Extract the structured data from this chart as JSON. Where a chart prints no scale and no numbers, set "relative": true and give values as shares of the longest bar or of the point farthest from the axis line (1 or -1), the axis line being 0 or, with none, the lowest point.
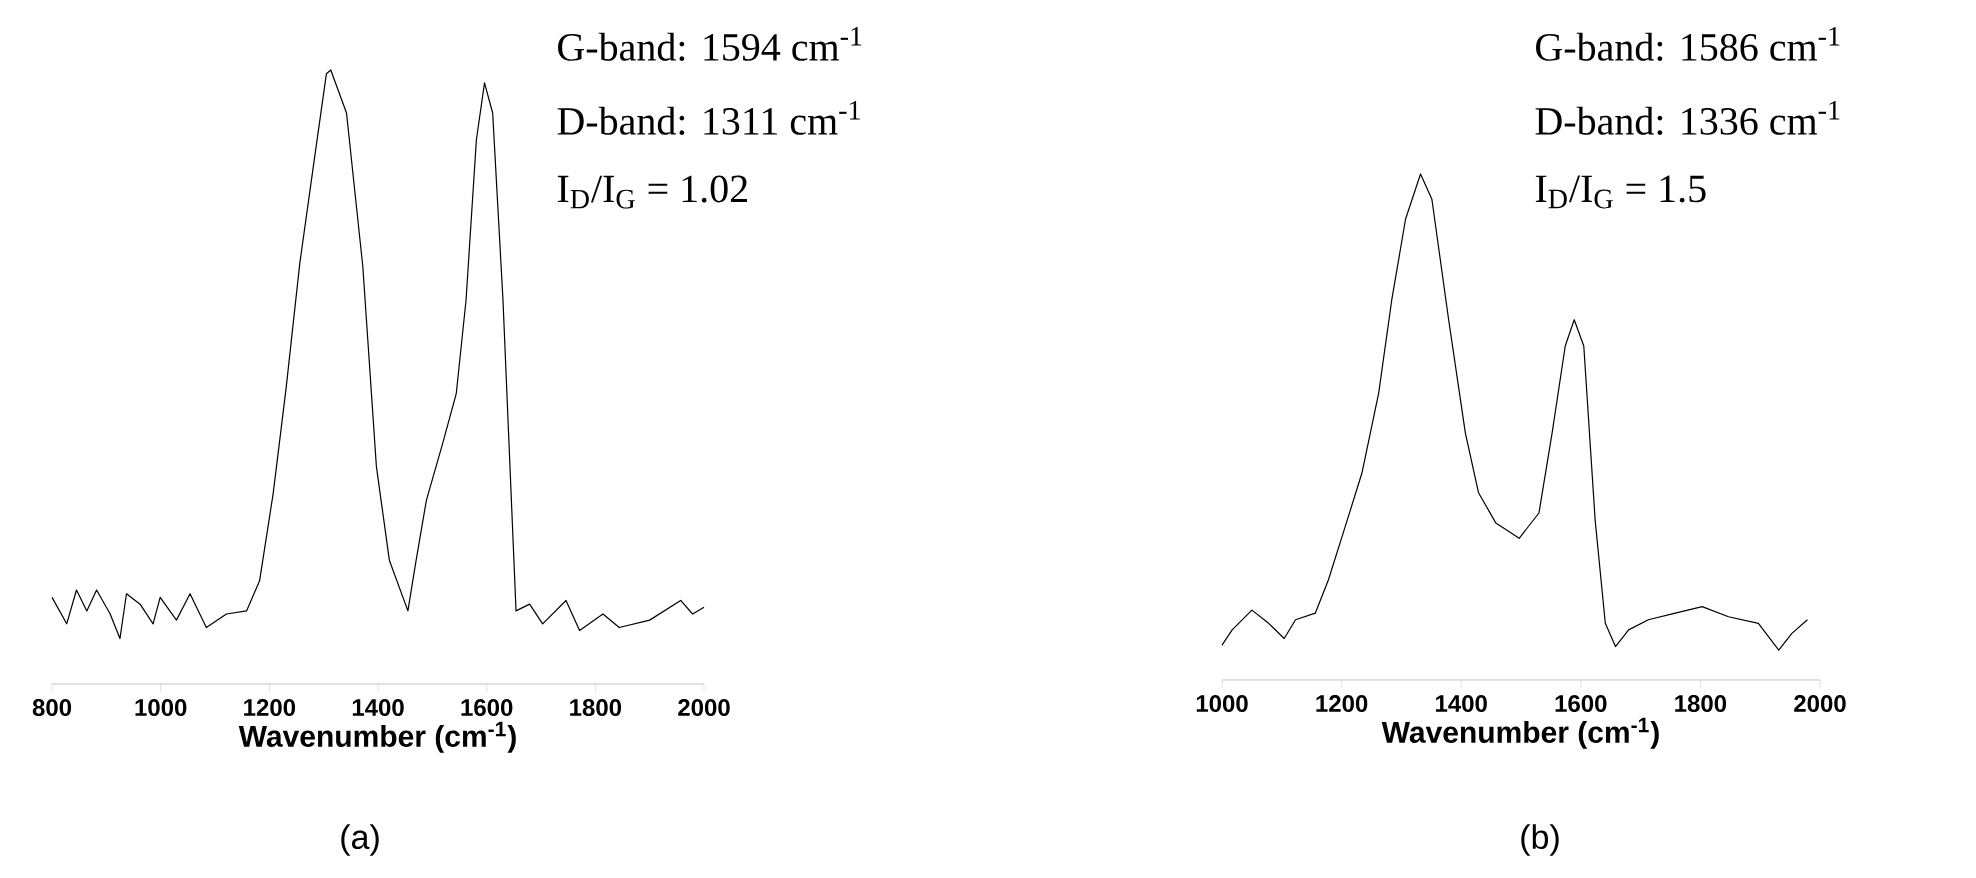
{
  "chart_data": [
    {
      "type": "line",
      "relative": true,
      "xlabel": "Wavenumber (cm$^{-1}$)",
      "xlim": [
        800,
        2000
      ],
      "xticks": [
        800,
        1000,
        1200,
        1400,
        1600,
        1800,
        2000
      ],
      "annotations": [
        "G-band: 1594 cm$^{-1}$",
        "D-band: 1311 cm$^{-1}$",
        "I$_{D}$/I$_{G}$ = 1.02",
        "(a)"
      ],
      "series": [
        {
          "color": "#000000",
          "x": [
            800,
            827,
            845,
            864,
            882,
            907,
            925,
            937,
            962,
            986,
            999,
            1029,
            1054,
            1084,
            1121,
            1158,
            1182,
            1207,
            1231,
            1256,
            1280,
            1305,
            1313,
            1342,
            1372,
            1397,
            1421,
            1455,
            1470,
            1489,
            1519,
            1544,
            1562,
            1581,
            1596,
            1611,
            1630,
            1654,
            1679,
            1703,
            1746,
            1771,
            1814,
            1844,
            1900,
            1957,
            1979,
            2000
          ],
          "values": [
            0.141,
            0.098,
            0.153,
            0.119,
            0.153,
            0.114,
            0.074,
            0.147,
            0.13,
            0.098,
            0.141,
            0.104,
            0.147,
            0.092,
            0.114,
            0.119,
            0.168,
            0.31,
            0.483,
            0.685,
            0.837,
            0.994,
            1.0,
            0.93,
            0.68,
            0.354,
            0.201,
            0.119,
            0.201,
            0.299,
            0.392,
            0.473,
            0.625,
            0.886,
            0.979,
            0.93,
            0.625,
            0.119,
            0.13,
            0.098,
            0.136,
            0.087,
            0.114,
            0.092,
            0.104,
            0.136,
            0.114,
            0.125
          ]
        }
      ]
    },
    {
      "type": "line",
      "relative": true,
      "xlabel": "Wavenumber (cm$^{-1}$)",
      "xlim": [
        1000,
        2000
      ],
      "xticks": [
        1000,
        1200,
        1400,
        1600,
        1800,
        2000
      ],
      "annotations": [
        "G-band: 1586 cm$^{-1}$",
        "D-band: 1336 cm$^{-1}$",
        "I$_{D}$/I$_{G}$ = 1.5",
        "(b)"
      ],
      "series": [
        {
          "color": "#000000",
          "x": [
            1000,
            1017,
            1050,
            1078,
            1104,
            1123,
            1156,
            1178,
            1206,
            1234,
            1262,
            1284,
            1307,
            1332,
            1351,
            1379,
            1407,
            1429,
            1458,
            1497,
            1530,
            1552,
            1574,
            1589,
            1605,
            1624,
            1641,
            1658,
            1680,
            1713,
            1758,
            1803,
            1847,
            1897,
            1931,
            1953,
            1979
          ],
          "values": [
            0.069,
            0.099,
            0.138,
            0.112,
            0.082,
            0.119,
            0.132,
            0.198,
            0.303,
            0.409,
            0.567,
            0.752,
            0.911,
            1.0,
            0.95,
            0.712,
            0.488,
            0.37,
            0.31,
            0.28,
            0.33,
            0.488,
            0.66,
            0.712,
            0.66,
            0.316,
            0.112,
            0.066,
            0.099,
            0.119,
            0.132,
            0.145,
            0.125,
            0.112,
            0.059,
            0.092,
            0.119
          ]
        }
      ]
    }
  ]
}
